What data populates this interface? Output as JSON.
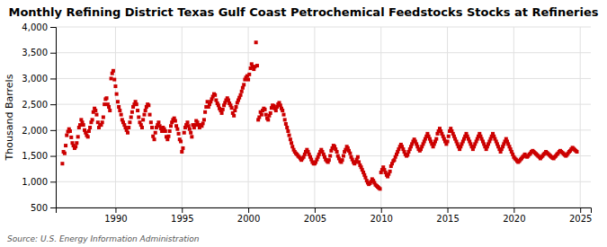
{
  "chart_data": {
    "type": "scatter",
    "title": "Monthly Refining District Texas Gulf Coast Petrochemical Feedstocks Stocks at Refineries",
    "y_label": "Thousand Barrels",
    "source": "Source: U.S. Energy Information Administration",
    "color": "#cc0000",
    "marker": "square",
    "grid": true,
    "xlim": [
      1985.5,
      2025.8
    ],
    "xticks": [
      1990,
      1995,
      2000,
      2005,
      2010,
      2015,
      2020,
      2025
    ],
    "ylim": [
      500,
      4000
    ],
    "yticks": [
      500,
      {
        "value": 1000,
        "label": "1,000"
      },
      {
        "value": 1500,
        "label": "1,500"
      },
      {
        "value": 2000,
        "label": "2,000"
      },
      {
        "value": 2500,
        "label": "2,500"
      },
      {
        "value": 3000,
        "label": "3,000"
      },
      {
        "value": 3500,
        "label": "3,500"
      },
      {
        "value": 4000,
        "label": "4,000"
      }
    ],
    "x": [
      1986.0,
      1986.08,
      1986.17,
      1986.25,
      1986.33,
      1986.42,
      1986.5,
      1986.58,
      1986.67,
      1986.75,
      1986.83,
      1986.92,
      1987.0,
      1987.08,
      1987.17,
      1987.25,
      1987.33,
      1987.42,
      1987.5,
      1987.58,
      1987.67,
      1987.75,
      1987.83,
      1987.92,
      1988.0,
      1988.08,
      1988.17,
      1988.25,
      1988.33,
      1988.42,
      1988.5,
      1988.58,
      1988.67,
      1988.75,
      1988.83,
      1988.92,
      1989.0,
      1989.08,
      1989.17,
      1989.25,
      1989.33,
      1989.42,
      1989.5,
      1989.58,
      1989.67,
      1989.75,
      1989.83,
      1989.92,
      1990.0,
      1990.08,
      1990.17,
      1990.25,
      1990.33,
      1990.42,
      1990.5,
      1990.58,
      1990.67,
      1990.75,
      1990.83,
      1990.92,
      1991.0,
      1991.08,
      1991.17,
      1991.25,
      1991.33,
      1991.42,
      1991.5,
      1991.58,
      1991.67,
      1991.75,
      1991.83,
      1991.92,
      1992.0,
      1992.08,
      1992.17,
      1992.25,
      1992.33,
      1992.42,
      1992.5,
      1992.58,
      1992.67,
      1992.75,
      1992.83,
      1992.92,
      1993.0,
      1993.08,
      1993.17,
      1993.25,
      1993.33,
      1993.42,
      1993.5,
      1993.58,
      1993.67,
      1993.75,
      1993.83,
      1993.92,
      1994.0,
      1994.08,
      1994.17,
      1994.25,
      1994.33,
      1994.42,
      1994.5,
      1994.58,
      1994.67,
      1994.75,
      1994.83,
      1994.92,
      1995.0,
      1995.08,
      1995.17,
      1995.25,
      1995.33,
      1995.42,
      1995.5,
      1995.58,
      1995.67,
      1995.75,
      1995.83,
      1995.92,
      1996.0,
      1996.08,
      1996.17,
      1996.25,
      1996.33,
      1996.42,
      1996.5,
      1996.58,
      1996.67,
      1996.75,
      1996.83,
      1996.92,
      1997.0,
      1997.08,
      1997.17,
      1997.25,
      1997.33,
      1997.42,
      1997.5,
      1997.58,
      1997.67,
      1997.75,
      1997.83,
      1997.92,
      1998.0,
      1998.08,
      1998.17,
      1998.25,
      1998.33,
      1998.42,
      1998.5,
      1998.58,
      1998.67,
      1998.75,
      1998.83,
      1998.92,
      1999.0,
      1999.08,
      1999.17,
      1999.25,
      1999.33,
      1999.42,
      1999.5,
      1999.58,
      1999.67,
      1999.75,
      1999.83,
      1999.92,
      2000.0,
      2000.08,
      2000.17,
      2000.25,
      2000.33,
      2000.42,
      2000.5,
      2000.58,
      2000.67,
      2000.75,
      2000.83,
      2000.92,
      2001.0,
      2001.08,
      2001.17,
      2001.25,
      2001.33,
      2001.42,
      2001.5,
      2001.58,
      2001.67,
      2001.75,
      2001.83,
      2001.92,
      2002.0,
      2002.08,
      2002.17,
      2002.25,
      2002.33,
      2002.42,
      2002.5,
      2002.58,
      2002.67,
      2002.75,
      2002.83,
      2002.92,
      2003.0,
      2003.08,
      2003.17,
      2003.25,
      2003.33,
      2003.42,
      2003.5,
      2003.58,
      2003.67,
      2003.75,
      2003.83,
      2003.92,
      2004.0,
      2004.08,
      2004.17,
      2004.25,
      2004.33,
      2004.42,
      2004.5,
      2004.58,
      2004.67,
      2004.75,
      2004.83,
      2004.92,
      2005.0,
      2005.08,
      2005.17,
      2005.25,
      2005.33,
      2005.42,
      2005.5,
      2005.58,
      2005.67,
      2005.75,
      2005.83,
      2005.92,
      2006.0,
      2006.08,
      2006.17,
      2006.25,
      2006.33,
      2006.42,
      2006.5,
      2006.58,
      2006.67,
      2006.75,
      2006.83,
      2006.92,
      2007.0,
      2007.08,
      2007.17,
      2007.25,
      2007.33,
      2007.42,
      2007.5,
      2007.58,
      2007.67,
      2007.75,
      2007.83,
      2007.92,
      2008.0,
      2008.08,
      2008.17,
      2008.25,
      2008.33,
      2008.42,
      2008.5,
      2008.58,
      2008.67,
      2008.75,
      2008.83,
      2008.92,
      2009.0,
      2009.08,
      2009.17,
      2009.25,
      2009.33,
      2009.42,
      2009.5,
      2009.58,
      2009.67,
      2009.75,
      2009.83,
      2009.92,
      2010.0,
      2010.08,
      2010.17,
      2010.25,
      2010.33,
      2010.42,
      2010.5,
      2010.58,
      2010.67,
      2010.75,
      2010.83,
      2010.92,
      2011.0,
      2011.08,
      2011.17,
      2011.25,
      2011.33,
      2011.42,
      2011.5,
      2011.58,
      2011.67,
      2011.75,
      2011.83,
      2011.92,
      2012.0,
      2012.08,
      2012.17,
      2012.25,
      2012.33,
      2012.42,
      2012.5,
      2012.58,
      2012.67,
      2012.75,
      2012.83,
      2012.92,
      2013.0,
      2013.08,
      2013.17,
      2013.25,
      2013.33,
      2013.42,
      2013.5,
      2013.58,
      2013.67,
      2013.75,
      2013.83,
      2013.92,
      2014.0,
      2014.08,
      2014.17,
      2014.25,
      2014.33,
      2014.42,
      2014.5,
      2014.58,
      2014.67,
      2014.75,
      2014.83,
      2014.92,
      2015.0,
      2015.08,
      2015.17,
      2015.25,
      2015.33,
      2015.42,
      2015.5,
      2015.58,
      2015.67,
      2015.75,
      2015.83,
      2015.92,
      2016.0,
      2016.08,
      2016.17,
      2016.25,
      2016.33,
      2016.42,
      2016.5,
      2016.58,
      2016.67,
      2016.75,
      2016.83,
      2016.92,
      2017.0,
      2017.08,
      2017.17,
      2017.25,
      2017.33,
      2017.42,
      2017.5,
      2017.58,
      2017.67,
      2017.75,
      2017.83,
      2017.92,
      2018.0,
      2018.08,
      2018.17,
      2018.25,
      2018.33,
      2018.42,
      2018.5,
      2018.58,
      2018.67,
      2018.75,
      2018.83,
      2018.92,
      2019.0,
      2019.08,
      2019.17,
      2019.25,
      2019.33,
      2019.42,
      2019.5,
      2019.58,
      2019.67,
      2019.75,
      2019.83,
      2019.92,
      2020.0,
      2020.08,
      2020.17,
      2020.25,
      2020.33,
      2020.42,
      2020.5,
      2020.58,
      2020.67,
      2020.75,
      2020.83,
      2020.92,
      2021.0,
      2021.08,
      2021.17,
      2021.25,
      2021.33,
      2021.42,
      2021.5,
      2021.58,
      2021.67,
      2021.75,
      2021.83,
      2021.92,
      2022.0,
      2022.08,
      2022.17,
      2022.25,
      2022.33,
      2022.42,
      2022.5,
      2022.58,
      2022.67,
      2022.75,
      2022.83,
      2022.92,
      2023.0,
      2023.08,
      2023.17,
      2023.25,
      2023.33,
      2023.42,
      2023.5,
      2023.58,
      2023.67,
      2023.75,
      2023.83,
      2023.92,
      2024.0,
      2024.08,
      2024.17,
      2024.25,
      2024.33,
      2024.42,
      2024.5,
      2024.58,
      2024.67,
      2024.75
    ],
    "values": [
      1350,
      1580,
      1550,
      1700,
      1900,
      1970,
      2020,
      1980,
      1860,
      1750,
      1700,
      1650,
      1680,
      1750,
      1870,
      2050,
      2100,
      2200,
      2150,
      2100,
      2000,
      1950,
      1900,
      1870,
      1980,
      2050,
      2150,
      2200,
      2350,
      2420,
      2380,
      2300,
      2150,
      2050,
      2100,
      2100,
      2150,
      2250,
      2500,
      2600,
      2620,
      2500,
      2450,
      2380,
      3000,
      3100,
      3150,
      2980,
      2850,
      2700,
      2550,
      2450,
      2380,
      2300,
      2200,
      2150,
      2100,
      2050,
      2000,
      1950,
      2050,
      2150,
      2250,
      2350,
      2450,
      2500,
      2550,
      2500,
      2380,
      2250,
      2150,
      2100,
      2050,
      2200,
      2300,
      2380,
      2450,
      2500,
      2480,
      2300,
      2150,
      2050,
      1880,
      1820,
      1950,
      2050,
      2100,
      2150,
      2080,
      2030,
      1980,
      2050,
      2020,
      1980,
      1870,
      1820,
      1880,
      1980,
      2080,
      2150,
      2200,
      2230,
      2180,
      2080,
      2020,
      1930,
      1820,
      1780,
      1580,
      1650,
      1950,
      2050,
      2100,
      2150,
      2080,
      2020,
      1950,
      1870,
      2100,
      2050,
      2100,
      2180,
      2150,
      2100,
      2050,
      2100,
      2080,
      2130,
      2200,
      2350,
      2450,
      2550,
      2450,
      2500,
      2550,
      2600,
      2650,
      2700,
      2680,
      2580,
      2520,
      2480,
      2420,
      2380,
      2330,
      2400,
      2480,
      2530,
      2580,
      2620,
      2580,
      2520,
      2480,
      2430,
      2330,
      2280,
      2380,
      2450,
      2530,
      2580,
      2630,
      2680,
      2750,
      2820,
      2880,
      2980,
      3020,
      3050,
      2980,
      3080,
      3200,
      3280,
      3230,
      3180,
      3230,
      3700,
      3250,
      2200,
      2250,
      2350,
      2300,
      2380,
      2420,
      2400,
      2300,
      2230,
      2200,
      2280,
      2330,
      2430,
      2480,
      2470,
      2420,
      2380,
      2450,
      2500,
      2530,
      2480,
      2420,
      2380,
      2300,
      2200,
      2120,
      2050,
      1980,
      1900,
      1820,
      1750,
      1680,
      1620,
      1580,
      1550,
      1530,
      1500,
      1480,
      1450,
      1420,
      1450,
      1480,
      1530,
      1580,
      1620,
      1580,
      1530,
      1480,
      1430,
      1380,
      1350,
      1350,
      1380,
      1430,
      1480,
      1530,
      1580,
      1620,
      1580,
      1530,
      1480,
      1430,
      1400,
      1380,
      1420,
      1500,
      1600,
      1650,
      1700,
      1680,
      1630,
      1580,
      1500,
      1450,
      1400,
      1380,
      1420,
      1500,
      1580,
      1620,
      1680,
      1650,
      1600,
      1550,
      1480,
      1430,
      1380,
      1350,
      1380,
      1430,
      1480,
      1380,
      1320,
      1280,
      1230,
      1180,
      1130,
      1080,
      1020,
      980,
      950,
      970,
      1000,
      1050,
      1020,
      980,
      940,
      920,
      900,
      880,
      860,
      1180,
      1230,
      1280,
      1230,
      1180,
      1130,
      1100,
      1150,
      1200,
      1300,
      1350,
      1400,
      1420,
      1480,
      1530,
      1580,
      1630,
      1680,
      1720,
      1680,
      1630,
      1580,
      1530,
      1500,
      1520,
      1580,
      1630,
      1680,
      1730,
      1780,
      1820,
      1780,
      1730,
      1680,
      1630,
      1600,
      1630,
      1680,
      1730,
      1780,
      1830,
      1880,
      1930,
      1880,
      1830,
      1780,
      1730,
      1680,
      1730,
      1780,
      1830,
      1930,
      1980,
      2030,
      1980,
      1930,
      1880,
      1830,
      1780,
      1730,
      1780,
      1880,
      1980,
      2030,
      1980,
      1930,
      1880,
      1830,
      1780,
      1730,
      1680,
      1630,
      1680,
      1730,
      1780,
      1830,
      1880,
      1930,
      1880,
      1830,
      1780,
      1730,
      1680,
      1630,
      1680,
      1730,
      1780,
      1830,
      1880,
      1930,
      1880,
      1830,
      1780,
      1730,
      1680,
      1630,
      1680,
      1730,
      1780,
      1830,
      1880,
      1930,
      1880,
      1830,
      1780,
      1730,
      1680,
      1630,
      1580,
      1630,
      1680,
      1730,
      1780,
      1830,
      1780,
      1730,
      1680,
      1630,
      1580,
      1530,
      1480,
      1450,
      1430,
      1400,
      1380,
      1400,
      1430,
      1450,
      1480,
      1500,
      1530,
      1500,
      1480,
      1500,
      1530,
      1550,
      1580,
      1600,
      1580,
      1560,
      1540,
      1520,
      1500,
      1480,
      1450,
      1480,
      1500,
      1530,
      1550,
      1580,
      1560,
      1540,
      1520,
      1500,
      1480,
      1460,
      1450,
      1480,
      1500,
      1530,
      1550,
      1580,
      1600,
      1580,
      1560,
      1540,
      1520,
      1500,
      1520,
      1550,
      1580,
      1600,
      1630,
      1660,
      1640,
      1620,
      1600,
      1580
    ]
  }
}
